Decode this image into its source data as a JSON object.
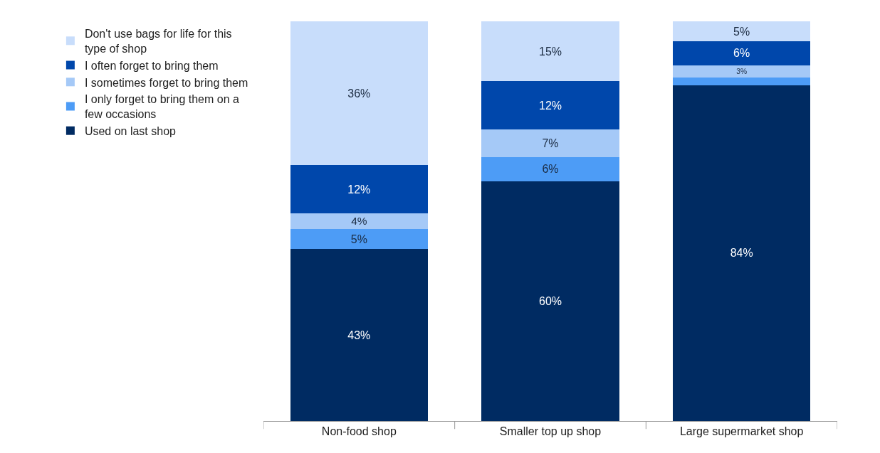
{
  "chart_data": {
    "type": "bar",
    "stacked": true,
    "categories": [
      "Non-food shop",
      "Smaller top up shop",
      "Large supermarket shop"
    ],
    "ylim": [
      0,
      100
    ],
    "tick_labels": "x",
    "grid": false,
    "legend": "left",
    "series": [
      {
        "name": "Used on last shop",
        "color": "#002b62",
        "values": [
          43,
          60,
          84
        ],
        "value_labels": [
          "43%",
          "60%",
          "84%"
        ]
      },
      {
        "name": "I only forget to bring them on a few occasions",
        "color": "#4d9cf6",
        "values": [
          5,
          6,
          2
        ],
        "value_labels": [
          "5%",
          "6%",
          null
        ]
      },
      {
        "name": "I sometimes forget to bring them",
        "color": "#a5c9f7",
        "values": [
          4,
          7,
          3
        ],
        "value_labels": [
          "4%",
          "7%",
          "3%"
        ]
      },
      {
        "name": "I often forget to bring them",
        "color": "#0047ab",
        "values": [
          12,
          12,
          6
        ],
        "value_labels": [
          "12%",
          "12%",
          "6%"
        ]
      },
      {
        "name": "Don't use bags for life for this type of shop",
        "color": "#c8ddfb",
        "values": [
          36,
          15,
          5
        ],
        "value_labels": [
          "36%",
          "15%",
          "5%"
        ]
      }
    ]
  }
}
